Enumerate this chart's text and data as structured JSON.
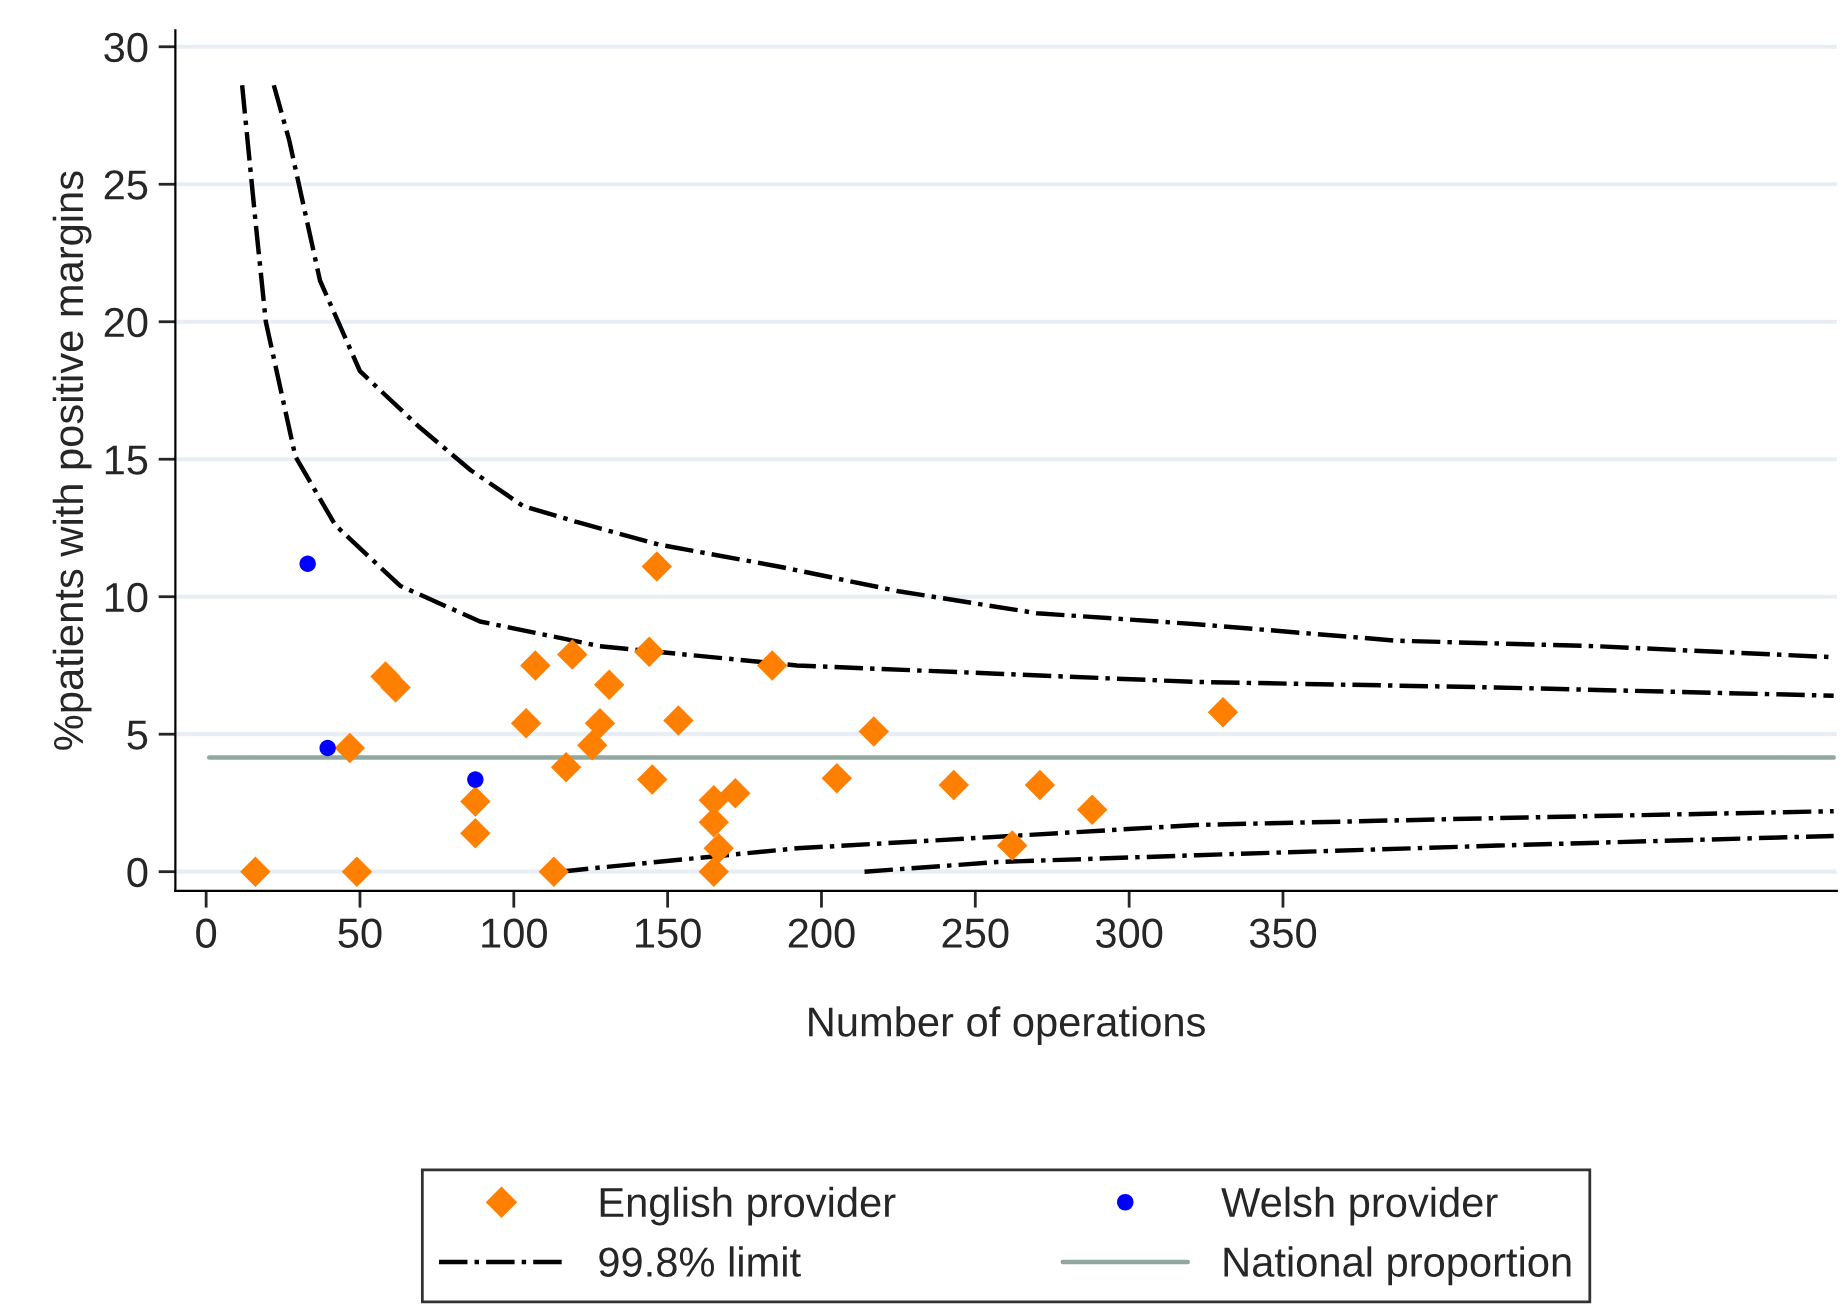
{
  "chart_data": {
    "type": "scatter",
    "xlabel": "Number of operations",
    "ylabel": "%patients with positive margins",
    "xlim": [
      -10,
      530
    ],
    "ylim": [
      -0.7,
      30.6
    ],
    "xticks": [
      0,
      50,
      100,
      150,
      200,
      250,
      300,
      350
    ],
    "yticks": [
      0,
      5,
      10,
      15,
      20,
      25,
      30
    ],
    "grid": "y",
    "legend": "bottom",
    "series": [
      {
        "name": "English provider",
        "marker": "diamond",
        "color": "#ff8000",
        "x": [
          16,
          49,
          46.7,
          58.3,
          61.6,
          87.5,
          87.5,
          104,
          107,
          113,
          117,
          119,
          125.5,
          128,
          131,
          144,
          145,
          146.5,
          153.5,
          165,
          172,
          165,
          166.6,
          165,
          184,
          217,
          205,
          243,
          271,
          288,
          262,
          330.5
        ],
        "values": [
          0,
          0,
          4.5,
          7.1,
          6.7,
          2.55,
          1.4,
          5.4,
          7.5,
          0,
          3.8,
          7.9,
          4.6,
          5.4,
          6.8,
          8.0,
          3.35,
          11.1,
          5.5,
          2.6,
          2.85,
          1.8,
          0.85,
          0,
          7.5,
          5.1,
          3.4,
          3.15,
          3.15,
          2.25,
          0.95,
          5.8
        ]
      },
      {
        "name": "Welsh provider",
        "marker": "circle",
        "color": "#0000ff",
        "x": [
          33,
          39.5,
          87.5
        ],
        "values": [
          11.2,
          4.5,
          3.35
        ]
      },
      {
        "name": "99.8% limit",
        "type": "line",
        "line_style": "dashdot",
        "color": "#000000",
        "x": [
          22,
          27,
          37,
          50,
          69,
          86,
          103,
          121,
          147,
          186,
          225,
          270,
          322,
          387,
          452,
          529
        ],
        "values": [
          28.6,
          26.6,
          21.5,
          18.2,
          16.2,
          14.6,
          13.3,
          12.7,
          11.9,
          11.1,
          10.2,
          9.4,
          9.0,
          8.4,
          8.2,
          7.8
        ]
      },
      {
        "type": "line",
        "line_style": "dashdot",
        "color": "#000000",
        "x": [
          214,
          257,
          322,
          420,
          529
        ],
        "values": [
          0,
          0.35,
          0.6,
          0.95,
          1.3
        ]
      },
      {
        "type": "line",
        "line_style": "dashdot",
        "color": "#000000",
        "x": [
          11.7,
          16,
          19.4,
          29,
          42,
          63,
          89,
          128,
          192,
          257,
          322,
          419,
          529
        ],
        "values": [
          28.6,
          23.7,
          20,
          15.1,
          12.6,
          10.4,
          9.1,
          8.2,
          7.5,
          7.2,
          6.9,
          6.7,
          6.4
        ]
      },
      {
        "type": "line",
        "line_style": "dashdot",
        "color": "#000000",
        "x": [
          115,
          128,
          192,
          262,
          322,
          420,
          529
        ],
        "values": [
          0,
          0.15,
          0.85,
          1.3,
          1.7,
          1.95,
          2.2
        ]
      },
      {
        "name": "National proportion",
        "type": "line",
        "line_style": "solid",
        "color": "#90a8a0",
        "x": [
          1,
          529
        ],
        "values": [
          4.15,
          4.15
        ]
      }
    ]
  }
}
